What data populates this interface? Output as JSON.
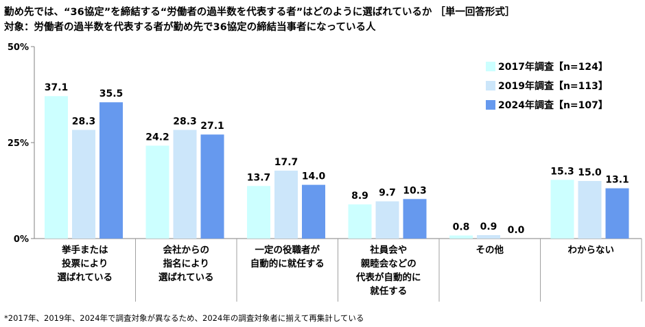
{
  "header": {
    "title": "勤め先では、“36協定”を締結する“労働者の過半数を代表する者”はどのように選ばれているか ［単一回答形式］",
    "subtitle": "対象：労働者の過半数を代表する者が勤め先で36協定の締結当事者になっている人"
  },
  "footnote": "*2017年、2019年、2024年で調査対象が異なるため、2024年の調査対象者に揃えて再集計している",
  "chart_data": {
    "type": "bar",
    "ylim": [
      0,
      50
    ],
    "ytick_values": [
      0,
      25,
      50
    ],
    "ytick_labels": [
      "0%",
      "25%",
      "50%"
    ],
    "grid": false,
    "legend_position": "top-right",
    "categories": [
      [
        "挙手または",
        "投票により",
        "選ばれている"
      ],
      [
        "会社からの",
        "指名により",
        "選ばれている"
      ],
      [
        "一定の役職者が",
        "自動的に就任する"
      ],
      [
        "社員会や",
        "親睦会などの",
        "代表が自動的に",
        "就任する"
      ],
      [
        "その他"
      ],
      [
        "わからない"
      ]
    ],
    "series": [
      {
        "name": "2017年調査【n=124】",
        "color": "#ccffff",
        "values": [
          37.1,
          24.2,
          13.7,
          8.9,
          0.8,
          15.3
        ],
        "labels": [
          "37.1",
          "24.2",
          "13.7",
          "8.9",
          "0.8",
          "15.3"
        ]
      },
      {
        "name": "2019年調査【n=113】",
        "color": "#cce6fa",
        "values": [
          28.3,
          28.3,
          17.7,
          9.7,
          0.9,
          15.0
        ],
        "labels": [
          "28.3",
          "28.3",
          "17.7",
          "9.7",
          "0.9",
          "15.0"
        ]
      },
      {
        "name": "2024年調査【n=107】",
        "color": "#6699ee",
        "values": [
          35.5,
          27.1,
          14.0,
          10.3,
          0.0,
          13.1
        ],
        "labels": [
          "35.5",
          "27.1",
          "14.0",
          "10.3",
          "0.0",
          "13.1"
        ]
      }
    ]
  }
}
